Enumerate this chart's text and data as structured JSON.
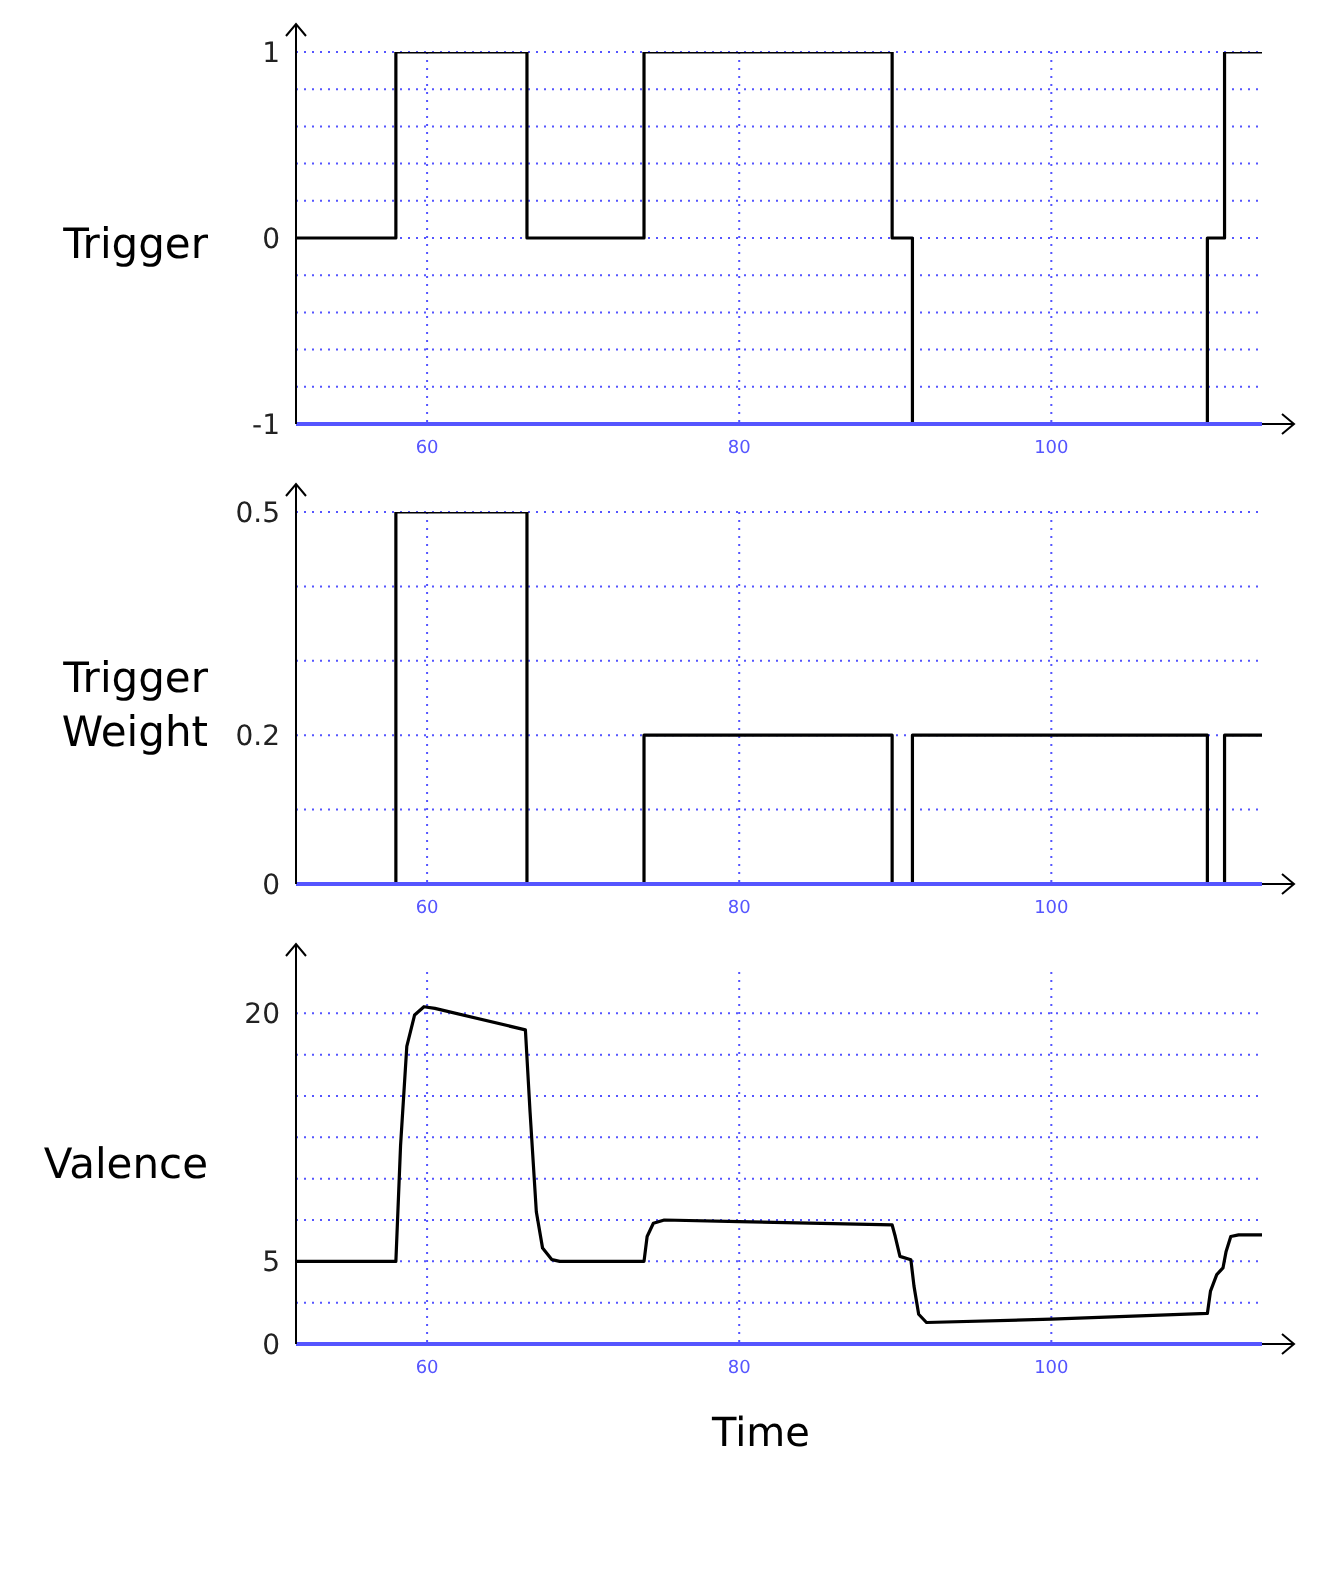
{
  "chart_data": [
    {
      "type": "step",
      "ylabel": "Trigger",
      "x": [
        51.6,
        58,
        66.4,
        73.9,
        89.8,
        91.1,
        110,
        111.1,
        113.5
      ],
      "series": [
        {
          "color": "#000000",
          "values": [
            0,
            1,
            0,
            1,
            0,
            -1,
            0,
            1,
            1
          ]
        }
      ],
      "xlim": [
        51.6,
        113.5
      ],
      "xticks": [
        60,
        80,
        100
      ],
      "ylim": [
        -1,
        1
      ],
      "yticks": [
        -1,
        {
          "value": -0.8,
          "label": null
        },
        {
          "value": -0.6,
          "label": null
        },
        {
          "value": -0.4,
          "label": null
        },
        {
          "value": -0.2,
          "label": null
        },
        0,
        {
          "value": 0.2,
          "label": null
        },
        {
          "value": 0.4,
          "label": null
        },
        {
          "value": 0.6,
          "label": null
        },
        {
          "value": 0.8,
          "label": null
        },
        1
      ],
      "grid": true,
      "marker": "none",
      "line_style": "solid"
    },
    {
      "type": "step",
      "ylabel": "Trigger Weight",
      "x": [
        51.6,
        58,
        66.4,
        73.9,
        89.8,
        91.1,
        110,
        111.1,
        113.5
      ],
      "series": [
        {
          "color": "#000000",
          "values": [
            0,
            0.5,
            0,
            0.2,
            0,
            0.2,
            0,
            0.2,
            0.2
          ]
        }
      ],
      "xlim": [
        51.6,
        113.5
      ],
      "xticks": [
        60,
        80,
        100
      ],
      "ylim": [
        0,
        0.5
      ],
      "yticks": [
        0,
        {
          "value": 0.1,
          "label": null
        },
        0.2,
        {
          "value": 0.3,
          "label": null
        },
        {
          "value": 0.4,
          "label": null
        },
        0.5
      ],
      "grid": true,
      "marker": "none",
      "line_style": "solid"
    },
    {
      "type": "line",
      "ylabel": "Valence",
      "xlabel": "Time",
      "x": [
        51.6,
        58,
        58.3,
        58.7,
        59.2,
        59.8,
        60.5,
        66.3,
        66.6,
        67,
        67.4,
        68,
        68.5,
        73.9,
        74.1,
        74.5,
        75.2,
        80,
        89.8,
        90,
        90.3,
        91,
        91.2,
        91.5,
        92,
        100,
        110,
        110.2,
        110.6,
        111,
        111.2,
        111.5,
        112,
        113.5
      ],
      "series": [
        {
          "color": "#000000",
          "values": [
            5,
            5,
            12,
            18,
            19.9,
            20.4,
            20.3,
            19,
            14,
            8,
            5.8,
            5.1,
            5,
            5,
            6.5,
            7.3,
            7.5,
            7.4,
            7.2,
            6.5,
            5.3,
            5.1,
            3.5,
            1.8,
            1.3,
            1.5,
            1.85,
            3.2,
            4.2,
            4.6,
            5.6,
            6.5,
            6.6,
            6.6
          ]
        }
      ],
      "xlim": [
        51.6,
        113.5
      ],
      "xticks": [
        60,
        80,
        100
      ],
      "ylim": [
        0,
        22.5
      ],
      "yticks": [
        0,
        {
          "value": 2.5,
          "label": null
        },
        5,
        {
          "value": 7.5,
          "label": null
        },
        {
          "value": 10,
          "label": null
        },
        {
          "value": 12.5,
          "label": null
        },
        {
          "value": 15,
          "label": null
        },
        {
          "value": 17.5,
          "label": null
        },
        20
      ],
      "grid": true,
      "marker": "none",
      "line_style": "solid"
    }
  ]
}
